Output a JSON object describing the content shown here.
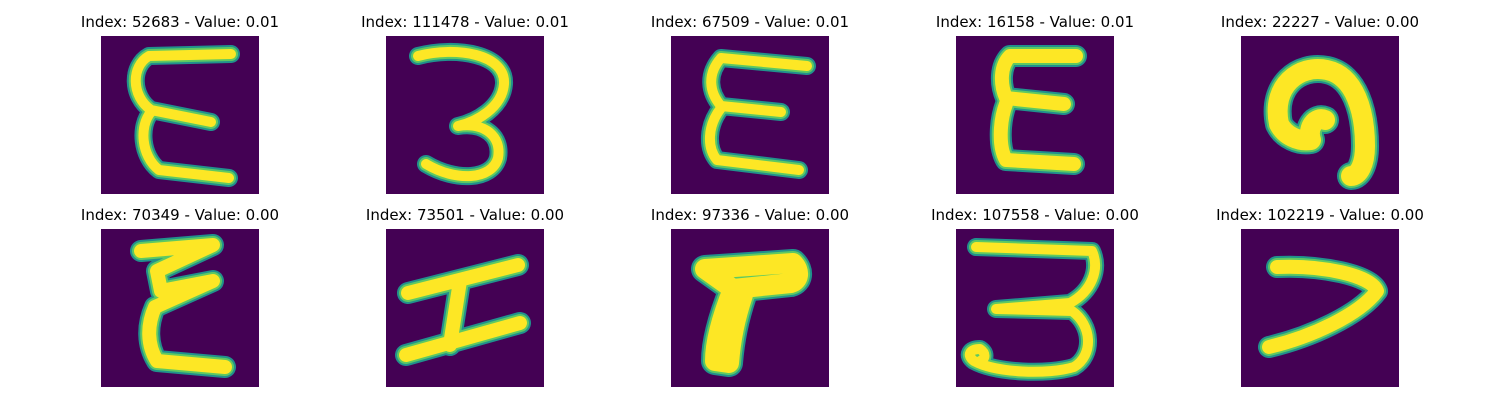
{
  "colors": {
    "background": "#440154",
    "stroke_edge": "#21918c",
    "stroke_mid": "#5ec962",
    "stroke_core": "#fde725"
  },
  "panels": [
    {
      "title": "Index: 52683 - Value: 0.01",
      "depicts": "E"
    },
    {
      "title": "Index: 111478 - Value: 0.01",
      "depicts": "3"
    },
    {
      "title": "Index: 67509 - Value: 0.01",
      "depicts": "E"
    },
    {
      "title": "Index: 16158 - Value: 0.01",
      "depicts": "E"
    },
    {
      "title": "Index: 22227 - Value: 0.00",
      "depicts": "curved blob"
    },
    {
      "title": "Index: 70349 - Value: 0.00",
      "depicts": "E"
    },
    {
      "title": "Index: 73501 - Value: 0.00",
      "depicts": "I"
    },
    {
      "title": "Index: 97336 - Value: 0.00",
      "depicts": "F"
    },
    {
      "title": "Index: 107558 - Value: 0.00",
      "depicts": "3"
    },
    {
      "title": "Index: 102219 - Value: 0.00",
      "depicts": "7"
    }
  ]
}
